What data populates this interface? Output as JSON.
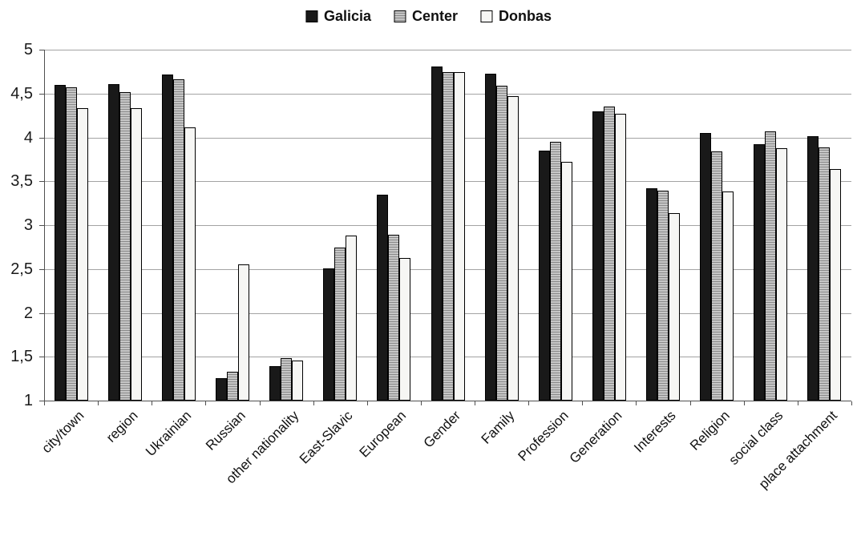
{
  "chart_data": {
    "type": "bar",
    "title": "",
    "categories": [
      "city/town",
      "region",
      "Ukrainian",
      "Russian",
      "other nationality",
      "East-Slavic",
      "European",
      "Gender",
      "Family",
      "Profession",
      "Generation",
      "Interests",
      "Religion",
      "social class",
      "place attachment"
    ],
    "series": [
      {
        "name": "Galicia",
        "fill": "#191919",
        "pattern": "solid",
        "values": [
          4.6,
          4.61,
          4.72,
          1.26,
          1.39,
          2.51,
          3.35,
          4.81,
          4.73,
          3.85,
          4.3,
          3.42,
          4.05,
          3.92,
          4.01
        ]
      },
      {
        "name": "Center",
        "fill": "#c6c6c6",
        "pattern": "horizontal-stripes",
        "values": [
          4.57,
          4.52,
          4.66,
          1.33,
          1.48,
          2.74,
          2.89,
          4.74,
          4.59,
          3.95,
          4.35,
          3.39,
          3.84,
          4.07,
          3.89
        ]
      },
      {
        "name": "Donbas",
        "fill": "#f6f6f4",
        "pattern": "solid",
        "values": [
          4.33,
          4.33,
          4.11,
          2.55,
          1.46,
          2.88,
          2.63,
          4.74,
          4.47,
          3.72,
          4.27,
          3.14,
          3.38,
          3.88,
          3.64
        ]
      }
    ],
    "y_axis": {
      "min": 1,
      "max": 5,
      "tick_step": 0.5,
      "tick_labels": [
        "1",
        "1,5",
        "2",
        "2,5",
        "3",
        "3,5",
        "4",
        "4,5",
        "5"
      ]
    },
    "xlabel": "",
    "ylabel": "",
    "grid": true,
    "legend_position": "top-center",
    "decimal_separator": ","
  }
}
